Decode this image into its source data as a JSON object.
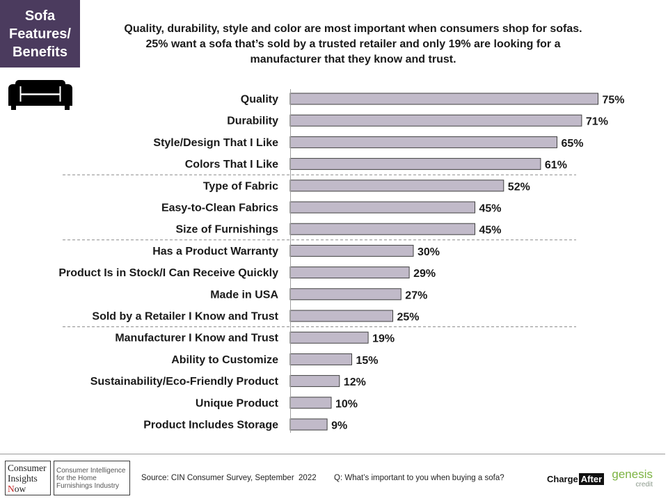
{
  "header": {
    "section_box_lines": [
      "Sofa",
      "Features/",
      "Benefits"
    ],
    "headline_lines": [
      "Quality, durability, style and color are most important when consumers shop for sofas.",
      "25% want a sofa that’s sold by a trusted retailer and only 19% are looking for a",
      "manufacturer that they know and trust."
    ]
  },
  "icons": {
    "sofa": "sofa-icon"
  },
  "colors": {
    "section_box_bg": "#4b3b5e",
    "text": "#1a1a1a",
    "separator": "#8a8a8a",
    "axis": "#a0a0a0",
    "genesis_green": "#7cb342",
    "cin_accent_red": "#c62828"
  },
  "chart_data": {
    "type": "bar",
    "orientation": "horizontal",
    "categories": [
      "Quality",
      "Durability",
      "Style/Design That I Like",
      "Colors That I Like",
      "Type of Fabric",
      "Easy-to-Clean Fabrics",
      "Size of Furnishings",
      "Has a Product Warranty",
      "Product Is in Stock/I Can Receive Quickly",
      "Made in USA",
      "Sold by a Retailer I Know and Trust",
      "Manufacturer I Know and Trust",
      "Ability to Customize",
      "Sustainability/Eco-Friendly Product",
      "Unique Product",
      "Product Includes Storage"
    ],
    "values": [
      75,
      71,
      65,
      61,
      52,
      45,
      45,
      30,
      29,
      27,
      25,
      19,
      15,
      12,
      10,
      9
    ],
    "data_labels": [
      "75%",
      "71%",
      "65%",
      "61%",
      "52%",
      "45%",
      "45%",
      "30%",
      "29%",
      "27%",
      "25%",
      "19%",
      "15%",
      "12%",
      "10%",
      "9%"
    ],
    "unit": "%",
    "xlim": [
      0,
      80
    ],
    "grid": false,
    "legend": "none",
    "group_breaks_after": [
      3,
      6,
      10
    ],
    "bar_color": "#c1bac9",
    "bar_border_color": "#404040"
  },
  "footer": {
    "cin_logo": {
      "name_lines": [
        "Consumer",
        "Insights",
        "Now"
      ],
      "tagline_lines": [
        "Consumer Intelligence",
        "for the Home",
        "Furnishings Industry"
      ]
    },
    "source": "Source: CIN Consumer Survey, September  2022",
    "question": "Q: What’s important to you when buying a sofa?",
    "chargeafter_logo": {
      "part1": "Charge",
      "part2": "After"
    },
    "genesis_logo": {
      "name": "genesis",
      "sub": "credit"
    }
  }
}
